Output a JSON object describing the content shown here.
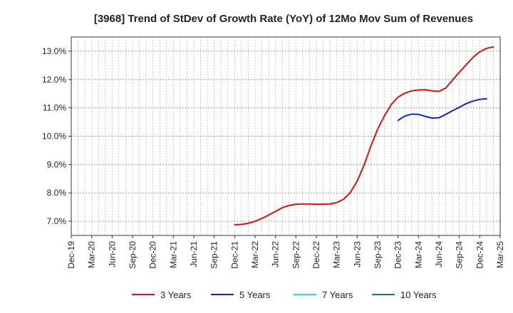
{
  "chart_data": {
    "type": "line",
    "title": "[3968]  Trend of StDev of Growth Rate (YoY) of 12Mo Mov Sum of Revenues",
    "xlabel": "",
    "ylabel": "",
    "x_tick_labels": [
      "Dec-19",
      "Mar-20",
      "Jun-20",
      "Sep-20",
      "Dec-20",
      "Mar-21",
      "Jun-21",
      "Sep-21",
      "Dec-21",
      "Mar-22",
      "Jun-22",
      "Sep-22",
      "Dec-22",
      "Mar-23",
      "Jun-23",
      "Sep-23",
      "Dec-23",
      "Mar-24",
      "Jun-24",
      "Sep-24",
      "Dec-24",
      "Mar-25"
    ],
    "y_tick_labels": [
      "7.0%",
      "8.0%",
      "9.0%",
      "10.0%",
      "11.0%",
      "12.0%",
      "13.0%"
    ],
    "y_ticks": [
      7,
      8,
      9,
      10,
      11,
      12,
      13
    ],
    "ylim": [
      6.5,
      13.5
    ],
    "x_months_range": [
      0,
      63
    ],
    "grid": true,
    "legend_position": "bottom",
    "series": [
      {
        "name": "3 Years",
        "color": "#dd1111",
        "month_index": [
          24,
          25,
          26,
          27,
          28,
          29,
          30,
          31,
          32,
          33,
          34,
          35,
          36,
          37,
          38,
          39,
          40,
          41,
          42,
          43,
          44,
          45,
          46,
          47,
          48,
          49,
          50,
          51,
          52,
          53,
          54,
          55,
          56,
          57,
          58,
          59,
          60
        ],
        "values": [
          6.88,
          6.89,
          6.93,
          7.0,
          7.1,
          7.22,
          7.35,
          7.48,
          7.56,
          7.6,
          7.61,
          7.61,
          7.6,
          7.6,
          7.61,
          7.66,
          7.78,
          8.02,
          8.42,
          8.98,
          9.65,
          10.25,
          10.72,
          11.12,
          11.38,
          11.52,
          11.6,
          11.63,
          11.64,
          11.6,
          11.58,
          11.7,
          11.98,
          12.26,
          12.52,
          12.78,
          12.98
        ]
      },
      {
        "name": "5 Years",
        "color": "#1122cc",
        "month_index": [
          48,
          49,
          50,
          51,
          52,
          53,
          54,
          55,
          56,
          57,
          58,
          59,
          60,
          61
        ],
        "values": [
          10.56,
          10.71,
          10.78,
          10.77,
          10.7,
          10.64,
          10.65,
          10.77,
          10.9,
          11.02,
          11.15,
          11.24,
          11.3,
          11.32
        ]
      },
      {
        "name": "7 Years",
        "color": "#22dddd",
        "month_index": [],
        "values": []
      },
      {
        "name": "10 Years",
        "color": "#228822",
        "month_index": [],
        "values": []
      }
    ]
  },
  "tail_fix": {
    "3 Years": [
      [
        61,
        13.1
      ],
      [
        62,
        13.15
      ]
    ]
  }
}
